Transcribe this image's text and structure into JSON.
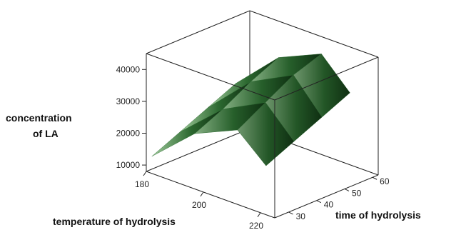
{
  "chart_data": {
    "type": "surface",
    "title": "",
    "xlabel": "temperature of hydrolysis",
    "ylabel": "time of hydrolysis",
    "zlabel": [
      "concentration",
      "of LA"
    ],
    "x_ticks": [
      180,
      200,
      220
    ],
    "y_ticks": [
      30,
      40,
      50,
      60
    ],
    "z_ticks": [
      10000,
      20000,
      30000,
      40000
    ],
    "x_range": [
      180,
      225
    ],
    "y_range": [
      25,
      62
    ],
    "z_range": [
      8000,
      45000
    ],
    "surface": {
      "x": [
        180,
        195,
        210,
        220
      ],
      "y": [
        27,
        37,
        47,
        57
      ],
      "values": [
        [
          12000,
          16000,
          20000,
          24000
        ],
        [
          24000,
          28000,
          33000,
          37000
        ],
        [
          30000,
          35000,
          40000,
          43000
        ],
        [
          22000,
          26000,
          30000,
          34000
        ]
      ]
    },
    "colors": {
      "surface_dark": "#0f2f12",
      "surface_mid": "#2f6e33",
      "surface_light": "#a9d6a5",
      "box": "#222222"
    },
    "grid": false,
    "legend": "none"
  }
}
